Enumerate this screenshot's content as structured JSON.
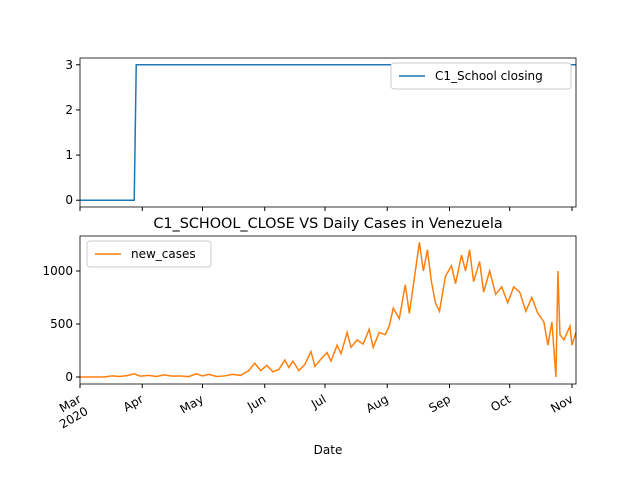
{
  "chart_data": [
    {
      "type": "line",
      "x": [
        "2020-03-01",
        "2020-03-28",
        "2020-03-29",
        "2020-11-03"
      ],
      "series": [
        {
          "name": "C1_School closing",
          "color": "#1f77b4",
          "values": [
            0,
            0,
            3,
            3
          ]
        }
      ],
      "xlim": [
        "2020-03-01",
        "2020-11-03"
      ],
      "ylim": [
        -0.15,
        3.15
      ],
      "yticks": [
        0,
        1,
        2,
        3
      ],
      "xticks": [
        "2020-03-01",
        "2020-04-01",
        "2020-05-01",
        "2020-06-01",
        "2020-07-01",
        "2020-08-01",
        "2020-09-01",
        "2020-10-01",
        "2020-11-01"
      ],
      "xtick_labels": false,
      "legend": "upper right"
    },
    {
      "type": "line",
      "title": "C1_SCHOOL_CLOSE VS Daily Cases in Venezuela",
      "xlabel": "Date",
      "x": [
        "2020-03-01",
        "2020-03-13",
        "2020-03-17",
        "2020-03-21",
        "2020-03-25",
        "2020-03-28",
        "2020-03-31",
        "2020-04-04",
        "2020-04-08",
        "2020-04-12",
        "2020-04-16",
        "2020-04-20",
        "2020-04-24",
        "2020-04-28",
        "2020-05-01",
        "2020-05-04",
        "2020-05-08",
        "2020-05-12",
        "2020-05-16",
        "2020-05-20",
        "2020-05-24",
        "2020-05-27",
        "2020-05-30",
        "2020-06-02",
        "2020-06-05",
        "2020-06-08",
        "2020-06-11",
        "2020-06-13",
        "2020-06-15",
        "2020-06-18",
        "2020-06-21",
        "2020-06-24",
        "2020-06-26",
        "2020-06-29",
        "2020-07-02",
        "2020-07-04",
        "2020-07-07",
        "2020-07-09",
        "2020-07-12",
        "2020-07-14",
        "2020-07-17",
        "2020-07-20",
        "2020-07-23",
        "2020-07-25",
        "2020-07-28",
        "2020-07-31",
        "2020-08-02",
        "2020-08-04",
        "2020-08-07",
        "2020-08-10",
        "2020-08-12",
        "2020-08-15",
        "2020-08-17",
        "2020-08-19",
        "2020-08-21",
        "2020-08-23",
        "2020-08-25",
        "2020-08-27",
        "2020-08-30",
        "2020-09-02",
        "2020-09-04",
        "2020-09-07",
        "2020-09-09",
        "2020-09-11",
        "2020-09-13",
        "2020-09-16",
        "2020-09-18",
        "2020-09-21",
        "2020-09-24",
        "2020-09-27",
        "2020-09-30",
        "2020-10-03",
        "2020-10-06",
        "2020-10-09",
        "2020-10-12",
        "2020-10-15",
        "2020-10-18",
        "2020-10-20",
        "2020-10-22",
        "2020-10-24",
        "2020-10-25",
        "2020-10-26",
        "2020-10-28",
        "2020-10-31",
        "2020-11-01",
        "2020-11-03"
      ],
      "series": [
        {
          "name": "new_cases",
          "color": "#ff7f0e",
          "values": [
            0,
            0,
            10,
            5,
            15,
            30,
            8,
            15,
            5,
            20,
            8,
            10,
            3,
            30,
            10,
            25,
            5,
            10,
            25,
            15,
            60,
            130,
            60,
            110,
            50,
            70,
            160,
            90,
            150,
            60,
            120,
            240,
            100,
            170,
            230,
            150,
            300,
            220,
            420,
            280,
            350,
            310,
            450,
            280,
            420,
            400,
            480,
            650,
            550,
            870,
            600,
            1000,
            1270,
            1000,
            1200,
            900,
            700,
            620,
            950,
            1050,
            880,
            1150,
            1000,
            1200,
            900,
            1090,
            800,
            1000,
            780,
            850,
            700,
            850,
            800,
            620,
            750,
            600,
            520,
            300,
            520,
            0,
            1000,
            400,
            350,
            480,
            300,
            420
          ]
        }
      ],
      "xlim": [
        "2020-03-01",
        "2020-11-03"
      ],
      "ylim": [
        -66,
        1330
      ],
      "yticks": [
        0,
        500,
        1000
      ],
      "xticks": [
        {
          "value": "2020-03-01",
          "label": "Mar\n2020"
        },
        {
          "value": "2020-04-01",
          "label": "Apr"
        },
        {
          "value": "2020-05-01",
          "label": "May"
        },
        {
          "value": "2020-06-01",
          "label": "Jun"
        },
        {
          "value": "2020-07-01",
          "label": "Jul"
        },
        {
          "value": "2020-08-01",
          "label": "Aug"
        },
        {
          "value": "2020-09-01",
          "label": "Sep"
        },
        {
          "value": "2020-10-01",
          "label": "Oct"
        },
        {
          "value": "2020-11-01",
          "label": "Nov"
        }
      ],
      "xtick_labels": true,
      "legend": "upper left"
    }
  ]
}
